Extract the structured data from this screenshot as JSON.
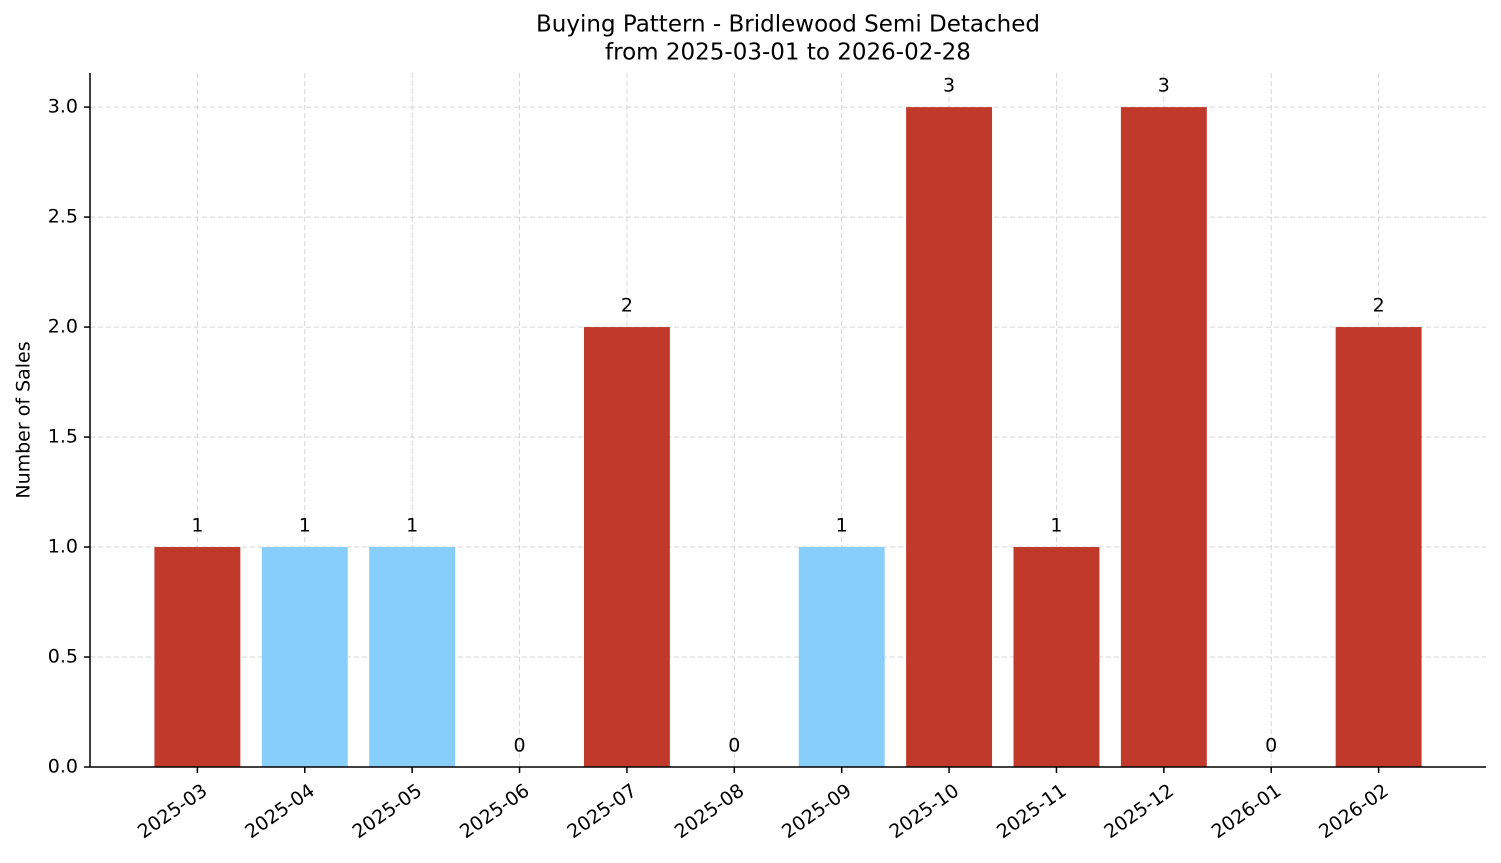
{
  "chart_data": {
    "type": "bar",
    "title": "Buying Pattern - Bridlewood Semi Detached",
    "subtitle": "from 2025-03-01 to 2026-02-28",
    "y_label": "Number of Sales",
    "categories": [
      "2025-03",
      "2025-04",
      "2025-05",
      "2025-06",
      "2025-07",
      "2025-08",
      "2025-09",
      "2025-10",
      "2025-11",
      "2025-12",
      "2026-01",
      "2026-02"
    ],
    "values": [
      1,
      1,
      1,
      0,
      2,
      0,
      1,
      3,
      1,
      3,
      0,
      2
    ],
    "colors": [
      "#c0392b",
      "#87cefa",
      "#87cefa",
      "#c0392b",
      "#c0392b",
      "#c0392b",
      "#87cefa",
      "#c0392b",
      "#c0392b",
      "#c0392b",
      "#c0392b",
      "#c0392b"
    ],
    "ylim": [
      0,
      3.155
    ],
    "yticks": [
      {
        "value": 0,
        "label": "0.0"
      },
      0.5,
      {
        "value": 1,
        "label": "1.0"
      },
      1.5,
      {
        "value": 2,
        "label": "2.0"
      },
      2.5,
      {
        "value": 3,
        "label": "3.0"
      }
    ],
    "grid": true
  }
}
